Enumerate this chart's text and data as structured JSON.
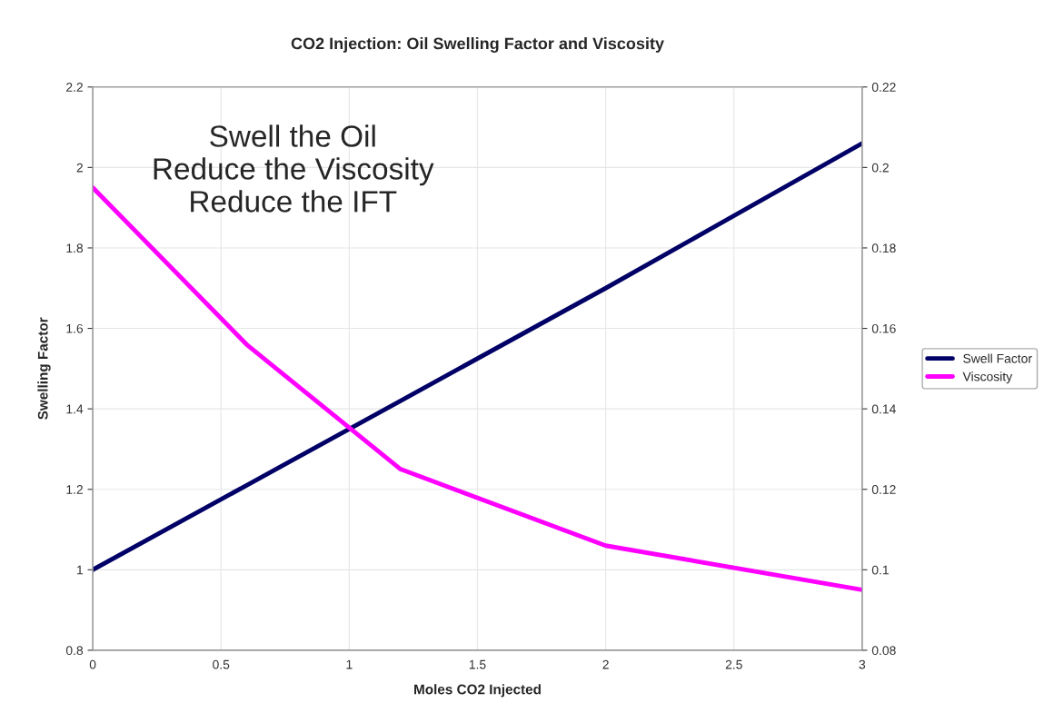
{
  "chart_data": {
    "type": "line",
    "title": "CO2 Injection: Oil Swelling Factor and Viscosity",
    "xlabel": "Moles CO2 Injected",
    "ylabel": "Swelling Factor",
    "x": [
      0,
      0.6,
      1.2,
      2,
      3
    ],
    "series": [
      {
        "name": "Swell Factor",
        "color": "#000066",
        "values": [
          1.0,
          1.21,
          1.42,
          1.7,
          2.06
        ]
      },
      {
        "name": "Viscosity",
        "color": "#ff00ff",
        "axis": "y2",
        "values": [
          0.195,
          0.156,
          0.125,
          0.106,
          0.095
        ]
      }
    ],
    "xlim": [
      0,
      3
    ],
    "xticks": [
      0,
      0.5,
      1,
      1.5,
      2,
      2.5,
      3
    ],
    "ylim": [
      0.8,
      2.2
    ],
    "yticks": [
      0.8,
      1,
      1.2,
      1.4,
      1.6,
      1.8,
      2,
      2.2
    ],
    "y2lim": [
      0.08,
      0.22
    ],
    "y2ticks": [
      0.08,
      0.1,
      0.12,
      0.14,
      0.16,
      0.18,
      0.2,
      0.22
    ],
    "annotations": [
      "Swell the Oil\nReduce the Viscosity\nReduce the IFT"
    ],
    "grid": true,
    "legend": "right",
    "marker": "none",
    "line_style": "solid"
  }
}
